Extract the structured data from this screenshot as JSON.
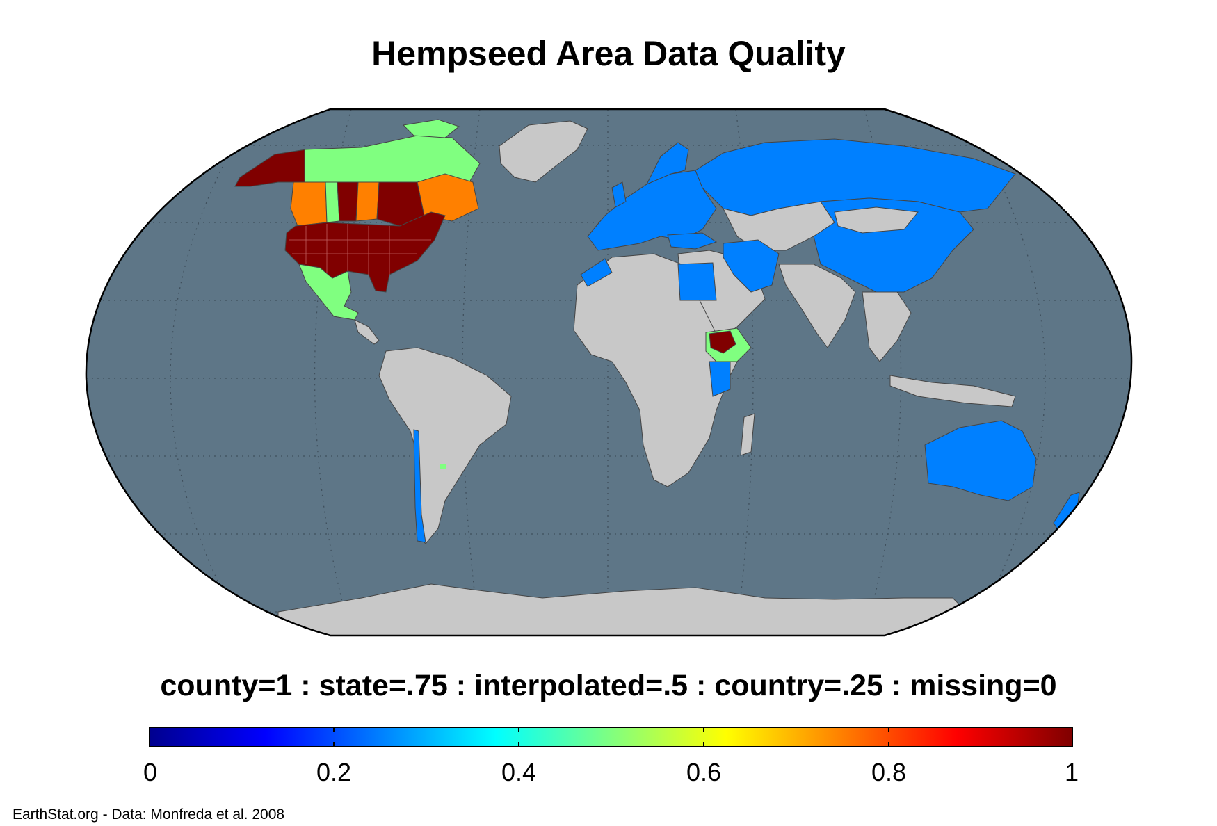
{
  "title": "Hempseed Area Data Quality",
  "legend": {
    "caption": "county=1 : state=.75 : interpolated=.5 : country=.25 : missing=0",
    "colormap": "jet",
    "min": 0,
    "max": 1,
    "ticks": [
      "0",
      "0.2",
      "0.4",
      "0.6",
      "0.8",
      "1"
    ]
  },
  "credit": "EarthStat.org - Data: Monfreda et al. 2008",
  "colors": {
    "ocean": "#5e7687",
    "missing": "#c8c8c8",
    "county": "#800000",
    "state": "#ff8000",
    "interpolated": "#80ff80",
    "country": "#0080ff"
  },
  "regions": [
    {
      "name": "United States",
      "quality": "county"
    },
    {
      "name": "Alaska",
      "quality": "county"
    },
    {
      "name": "Canada (Saskatchewan, Ontario)",
      "quality": "county"
    },
    {
      "name": "Canada (British Columbia, Manitoba, Quebec)",
      "quality": "state"
    },
    {
      "name": "Canada (Alberta, northern territories)",
      "quality": "interpolated"
    },
    {
      "name": "Mexico",
      "quality": "interpolated"
    },
    {
      "name": "Ethiopia",
      "quality": "county"
    },
    {
      "name": "Europe",
      "quality": "country"
    },
    {
      "name": "Russia",
      "quality": "country"
    },
    {
      "name": "China",
      "quality": "country"
    },
    {
      "name": "Iran",
      "quality": "country"
    },
    {
      "name": "Egypt",
      "quality": "country"
    },
    {
      "name": "Morocco",
      "quality": "country"
    },
    {
      "name": "Chile",
      "quality": "country"
    },
    {
      "name": "Australia",
      "quality": "country"
    },
    {
      "name": "New Zealand",
      "quality": "country"
    },
    {
      "name": "Greenland",
      "quality": "missing"
    },
    {
      "name": "South America",
      "quality": "missing"
    },
    {
      "name": "Africa",
      "quality": "missing"
    },
    {
      "name": "South Asia",
      "quality": "missing"
    },
    {
      "name": "Antarctica",
      "quality": "missing"
    }
  ]
}
